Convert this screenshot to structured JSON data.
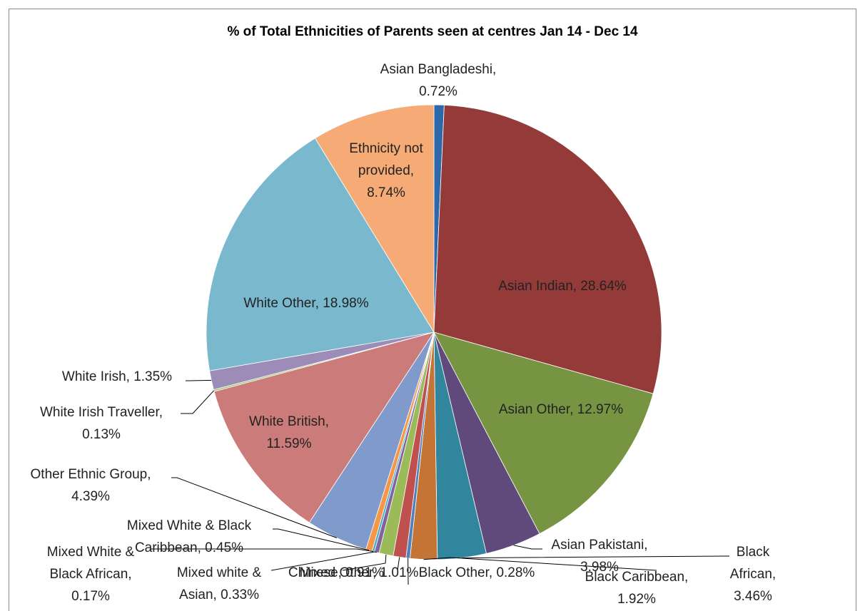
{
  "chart_data": {
    "type": "pie",
    "title": "% of Total Ethnicities of Parents seen at centres Jan 14 - Dec 14",
    "slices": [
      {
        "name": "Asian Bangladeshi",
        "value": 0.72,
        "label": "0.72%",
        "color": "#2E68A8"
      },
      {
        "name": "Asian Indian",
        "value": 28.64,
        "label": "28.64%",
        "color": "#943B3A"
      },
      {
        "name": "Asian Other",
        "value": 12.97,
        "label": "12.97%",
        "color": "#779443"
      },
      {
        "name": "Asian Pakistani",
        "value": 3.98,
        "label": "3.98%",
        "color": "#604A7B"
      },
      {
        "name": "Black African",
        "value": 3.46,
        "label": "3.46%",
        "color": "#31859C"
      },
      {
        "name": "Black Caribbean",
        "value": 1.92,
        "label": "1.92%",
        "color": "#C47535"
      },
      {
        "name": "Black Other",
        "value": 0.28,
        "label": "0.28%",
        "color": "#4F81BD"
      },
      {
        "name": "Chinese",
        "value": 0.91,
        "label": "0.91%",
        "color": "#C0504D"
      },
      {
        "name": "Mixed Other",
        "value": 1.01,
        "label": "1.01%",
        "color": "#9BBB59"
      },
      {
        "name": "Mixed white & Asian",
        "value": 0.33,
        "label": "0.33%",
        "color": "#8064A2"
      },
      {
        "name": "Mixed White & Black African",
        "value": 0.17,
        "label": "0.17%",
        "color": "#4BACC6"
      },
      {
        "name": "Mixed White & Black Caribbean",
        "value": 0.45,
        "label": "0.45%",
        "color": "#F79646"
      },
      {
        "name": "Other Ethnic Group",
        "value": 4.39,
        "label": "4.39%",
        "color": "#7F9ACB"
      },
      {
        "name": "White British",
        "value": 11.59,
        "label": "11.59%",
        "color": "#CB7C7A"
      },
      {
        "name": "White Irish Traveller",
        "value": 0.13,
        "label": "0.13%",
        "color": "#A8C67B"
      },
      {
        "name": "White Irish",
        "value": 1.35,
        "label": "1.35%",
        "color": "#9D8CB8"
      },
      {
        "name": "White Other",
        "value": 18.98,
        "label": "18.98%",
        "color": "#79B8CD"
      },
      {
        "name": "Ethnicity not provided",
        "value": 8.74,
        "label": "8.74%",
        "color": "#F6AA76"
      }
    ],
    "data_labels": [
      [
        "Asian Bangladeshi,",
        "0.72%"
      ],
      [
        "Asian Indian, 28.64%"
      ],
      [
        "Asian Other, 12.97%"
      ],
      [
        "Asian Pakistani,",
        "3.98%"
      ],
      [
        "Black",
        "African,",
        "3.46%"
      ],
      [
        "Black Caribbean,",
        "1.92%"
      ],
      [
        "Black Other, 0.28%"
      ],
      [
        "Chinese, 0.91%"
      ],
      [
        "Mixed Other, 1.01%"
      ],
      [
        "Mixed white &",
        "Asian, 0.33%"
      ],
      [
        "Mixed White &",
        "Black African,",
        "0.17%"
      ],
      [
        "Mixed White & Black",
        "Caribbean, 0.45%"
      ],
      [
        "Other Ethnic Group,",
        "4.39%"
      ],
      [
        "White British,",
        "11.59%"
      ],
      [
        "White Irish Traveller,",
        "0.13%"
      ],
      [
        "White Irish, 1.35%"
      ],
      [
        "White Other, 18.98%"
      ],
      [
        "Ethnicity not",
        "provided,",
        "8.74%"
      ]
    ]
  }
}
